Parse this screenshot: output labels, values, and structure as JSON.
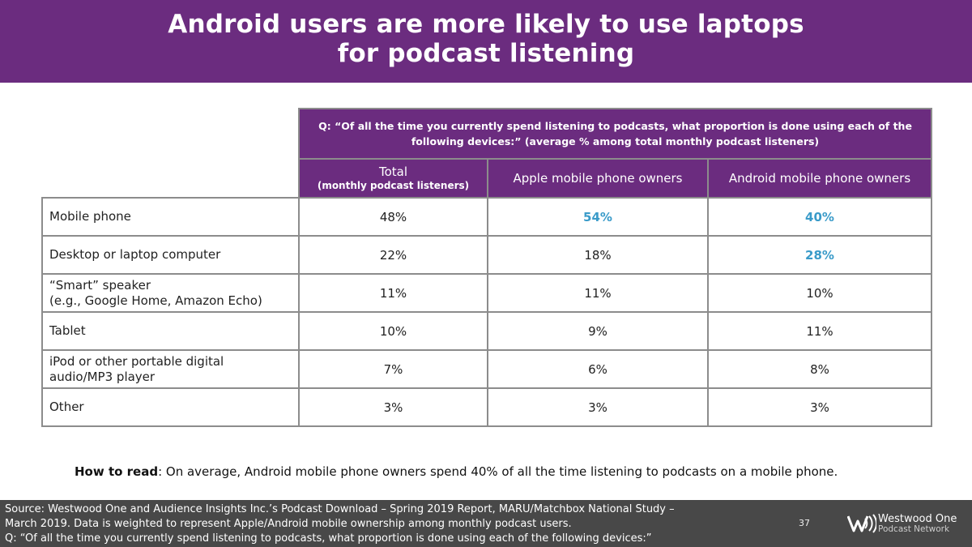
{
  "title": {
    "line1": "Android users are more likely to use laptops",
    "line2": "for podcast listening"
  },
  "chart_data": {
    "type": "table",
    "question": "Q: “Of all the time you currently spend listening to podcasts, what proportion is done using each of the following devices:” (average % among total monthly podcast listeners)",
    "columns": [
      {
        "label": "Total",
        "sublabel": "(monthly podcast listeners)"
      },
      {
        "label": "Apple mobile phone owners",
        "sublabel": ""
      },
      {
        "label": "Android mobile phone owners",
        "sublabel": ""
      }
    ],
    "rows": [
      {
        "label_lines": [
          "Mobile phone"
        ],
        "values": [
          "48%",
          "54%",
          "40%"
        ],
        "highlight": [
          false,
          true,
          true
        ]
      },
      {
        "label_lines": [
          "Desktop or laptop computer"
        ],
        "values": [
          "22%",
          "18%",
          "28%"
        ],
        "highlight": [
          false,
          false,
          true
        ]
      },
      {
        "label_lines": [
          "“Smart” speaker",
          "(e.g., Google Home, Amazon Echo)"
        ],
        "values": [
          "11%",
          "11%",
          "10%"
        ],
        "highlight": [
          false,
          false,
          false
        ]
      },
      {
        "label_lines": [
          "Tablet"
        ],
        "values": [
          "10%",
          "9%",
          "11%"
        ],
        "highlight": [
          false,
          false,
          false
        ]
      },
      {
        "label_lines": [
          "iPod or other portable digital",
          "audio/MP3 player"
        ],
        "values": [
          "7%",
          "6%",
          "8%"
        ],
        "highlight": [
          false,
          false,
          false
        ]
      },
      {
        "label_lines": [
          "Other"
        ],
        "values": [
          "3%",
          "3%",
          "3%"
        ],
        "highlight": [
          false,
          false,
          false
        ]
      }
    ]
  },
  "how_to_read": {
    "label": "How to read",
    "text": ": On average, Android mobile phone owners spend 40% of all the time listening to podcasts on a mobile phone."
  },
  "footer": {
    "source_lines": [
      "Source: Westwood One and Audience Insights Inc.’s Podcast Download – Spring 2019 Report, MARU/Matchbox National Study –",
      "March 2019. Data is weighted to represent Apple/Android mobile ownership among monthly podcast users.",
      "Q: “Of all the time you currently spend listening to podcasts, what proportion is done using each of the following devices:”"
    ],
    "page_number": "37",
    "logo_name": "Westwood One",
    "logo_sub": "Podcast Network"
  },
  "colors": {
    "brand_purple": "#6b2c7f",
    "highlight_blue": "#3a9bc9",
    "footer_gray": "#484848",
    "border_gray": "#8c8c8c"
  }
}
